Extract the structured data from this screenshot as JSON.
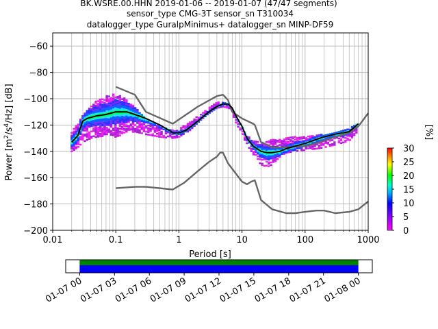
{
  "title": {
    "line1": "BK.WSRE.00.HHN   2019-01-06 -- 2019-01-07  (47/47 segments)",
    "line2": "sensor_type CMG-3T sensor_sn T310034",
    "line3": "datalogger_type GuralpMinimus+ datalogger_sn MINP-DF59"
  },
  "chart_data": [
    {
      "type": "heatmap",
      "subtype": "probabilistic power spectral density",
      "xlabel": "Period [s]",
      "ylabel": "Power [m²/s⁴/Hz] [dB]",
      "xscale": "log",
      "xlim": [
        0.01,
        1000
      ],
      "ylim": [
        -200,
        -50
      ],
      "x_ticks": [
        {
          "v": 0.01,
          "label": "0.01"
        },
        {
          "v": 0.1,
          "label": "0.1"
        },
        {
          "v": 1,
          "label": "1"
        },
        {
          "v": 10,
          "label": "10"
        },
        {
          "v": 100,
          "label": "100"
        },
        {
          "v": 1000,
          "label": "1000"
        }
      ],
      "y_ticks": [
        {
          "v": -200,
          "label": "−200"
        },
        {
          "v": -180,
          "label": "−180"
        },
        {
          "v": -160,
          "label": "−160"
        },
        {
          "v": -140,
          "label": "−140"
        },
        {
          "v": -120,
          "label": "−120"
        },
        {
          "v": -100,
          "label": "−100"
        },
        {
          "v": -80,
          "label": "−80"
        },
        {
          "v": -60,
          "label": "−60"
        }
      ],
      "grid": true,
      "density_band": {
        "periods": [
          0.02,
          0.025,
          0.03,
          0.04,
          0.05,
          0.07,
          0.1,
          0.15,
          0.2,
          0.3,
          0.5,
          0.8,
          1.0,
          1.5,
          2,
          3,
          4,
          5,
          6,
          7,
          8,
          10,
          12,
          15,
          20,
          25,
          30,
          40,
          50,
          70,
          100,
          150,
          200,
          300,
          500,
          700
        ],
        "upper": [
          -125,
          -119,
          -112,
          -106,
          -101,
          -98,
          -96,
          -100,
          -106,
          -115,
          -121,
          -124,
          -123,
          -118,
          -113,
          -107,
          -103,
          -102,
          -104,
          -107,
          -113,
          -121,
          -128,
          -132,
          -133,
          -132,
          -131,
          -131,
          -130,
          -129,
          -129,
          -128,
          -127,
          -126,
          -123,
          -118
        ],
        "lower": [
          -140,
          -137,
          -133,
          -130,
          -129,
          -128,
          -129,
          -126,
          -125,
          -127,
          -129,
          -130,
          -129,
          -124,
          -118,
          -111,
          -107,
          -106,
          -107,
          -111,
          -118,
          -127,
          -135,
          -142,
          -150,
          -152,
          -150,
          -144,
          -141,
          -140,
          -139,
          -138,
          -137,
          -135,
          -132,
          -124
        ]
      },
      "series": [
        {
          "x": [
            0.02,
            0.025,
            0.03,
            0.035,
            0.05,
            0.07,
            0.1,
            0.15,
            0.2,
            0.3,
            0.5,
            0.7,
            0.8,
            1.0,
            1.3,
            2,
            3,
            4,
            5,
            6,
            7,
            8,
            10,
            12,
            15,
            20,
            25,
            30,
            40,
            50,
            70,
            100,
            150,
            200,
            300,
            500,
            700
          ],
          "y": [
            -133,
            -128,
            -117,
            -115,
            -113,
            -112,
            -110,
            -110,
            -112,
            -115,
            -120,
            -124,
            -126,
            -126,
            -124,
            -117,
            -110,
            -106,
            -104,
            -104,
            -107,
            -113,
            -121,
            -130,
            -136,
            -140,
            -141,
            -141,
            -140,
            -138,
            -136,
            -134,
            -131,
            -129,
            -127,
            -125,
            -119
          ],
          "color": "#000000"
        },
        {
          "x": [
            0.1,
            0.2,
            0.3,
            0.8,
            2,
            4,
            5,
            6,
            7,
            10,
            15,
            16,
            20,
            30,
            50,
            100,
            150,
            200,
            300,
            500,
            700,
            1000
          ],
          "y": [
            -91,
            -97,
            -110,
            -119,
            -106,
            -98,
            -97,
            -101,
            -110,
            -115,
            -119,
            -120,
            -133,
            -137,
            -137,
            -136,
            -134,
            -132,
            -129,
            -126,
            -121,
            -111
          ],
          "color": "#666666"
        },
        {
          "x": [
            0.1,
            0.2,
            0.3,
            0.8,
            1.2,
            2.0,
            3,
            4,
            4.5,
            5,
            6,
            8,
            10,
            12,
            14,
            16,
            20,
            30,
            50,
            70,
            100,
            150,
            200,
            300,
            500,
            700,
            1000
          ],
          "y": [
            -168,
            -167,
            -167,
            -169,
            -164,
            -155,
            -148,
            -144,
            -141,
            -141,
            -149,
            -157,
            -163,
            -165,
            -163,
            -162,
            -177,
            -184,
            -187,
            -187,
            -186,
            -185,
            -185,
            -187,
            -186,
            -184,
            -178
          ],
          "color": "#666666"
        }
      ]
    },
    {
      "type": "bar",
      "subtype": "data coverage timeline",
      "x_ticks": [
        "01-07 00",
        "01-07 03",
        "01-07 06",
        "01-07 09",
        "01-07 12",
        "01-07 15",
        "01-07 18",
        "01-07 21",
        "01-08 00"
      ],
      "coverage_start_hour": 0,
      "coverage_end_hour": 24,
      "axis_start_hour": -1.2,
      "axis_end_hour": 25.2,
      "colors": {
        "top": "#008000",
        "bottom": "#0000ff"
      }
    },
    {
      "type": "heatmap",
      "subtype": "colorbar",
      "label": "[%]",
      "range": [
        0,
        30
      ],
      "ticks": [
        "0",
        "5",
        "10",
        "15",
        "20",
        "25",
        "30"
      ]
    }
  ]
}
